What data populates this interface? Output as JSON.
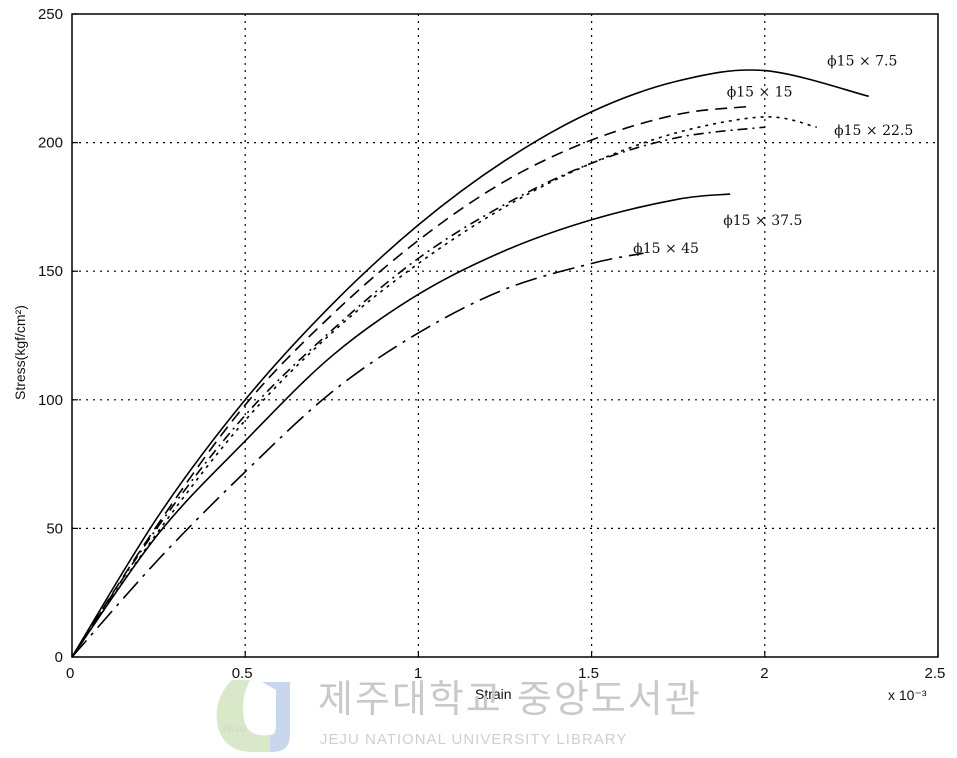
{
  "chart_data": {
    "type": "line",
    "xlabel": "Strain",
    "ylabel": "Stress(kgf/cm²)",
    "x_multiplier_label": "x 10⁻³",
    "xlim": [
      0,
      2.5
    ],
    "ylim": [
      0,
      250
    ],
    "x_ticks": [
      "0",
      "0.5",
      "1",
      "1.5",
      "2",
      "2.5"
    ],
    "y_ticks": [
      "0",
      "50",
      "100",
      "150",
      "200",
      "250"
    ],
    "grid": true,
    "series": [
      {
        "name": "ϕ15 × 7.5",
        "dash": "solid",
        "label_anchor": [
          2.18,
          230
        ],
        "x": [
          0,
          0.25,
          0.5,
          0.75,
          1.0,
          1.25,
          1.5,
          1.75,
          2.0,
          2.3
        ],
        "y": [
          0,
          55,
          100,
          137,
          168,
          193,
          212,
          224,
          228,
          218
        ]
      },
      {
        "name": "ϕ15 × 15",
        "dash": "dashed",
        "label_anchor": [
          1.89,
          218
        ],
        "x": [
          0,
          0.25,
          0.5,
          0.75,
          1.0,
          1.25,
          1.5,
          1.75,
          1.95
        ],
        "y": [
          0,
          52,
          98,
          133,
          162,
          185,
          201,
          211,
          214
        ]
      },
      {
        "name": "ϕ15 × 22.5",
        "dash": "dotted",
        "label_anchor": [
          2.2,
          203
        ],
        "x": [
          0,
          0.25,
          0.5,
          0.75,
          1.0,
          1.25,
          1.5,
          1.75,
          2.0,
          2.15
        ],
        "y": [
          0,
          49,
          92,
          126,
          153,
          175,
          192,
          204,
          210,
          206
        ]
      },
      {
        "name": "",
        "dash": "dashdot",
        "x": [
          0,
          0.25,
          0.5,
          0.75,
          1.0,
          1.25,
          1.5,
          1.75,
          2.0
        ],
        "y": [
          0,
          51,
          94,
          127,
          155,
          176,
          192,
          202,
          206
        ]
      },
      {
        "name": "ϕ15 × 37.5",
        "dash": "solid",
        "label_anchor": [
          1.88,
          168
        ],
        "x": [
          0,
          0.25,
          0.5,
          0.75,
          1.0,
          1.25,
          1.5,
          1.75,
          1.9
        ],
        "y": [
          0,
          48,
          84,
          117,
          141,
          158,
          170,
          178,
          180
        ]
      },
      {
        "name": "ϕ15 × 45",
        "dash": "longdashdot",
        "label_anchor": [
          1.62,
          157
        ],
        "x": [
          0,
          0.25,
          0.5,
          0.75,
          1.0,
          1.25,
          1.5,
          1.65
        ],
        "y": [
          0,
          38,
          72,
          103,
          126,
          143,
          153,
          157
        ]
      }
    ]
  },
  "watermark": {
    "korean": "제주대학교 중앙도서관",
    "english": "JEJU NATIONAL UNIVERSITY LIBRARY",
    "logo_text": "JEJU"
  }
}
